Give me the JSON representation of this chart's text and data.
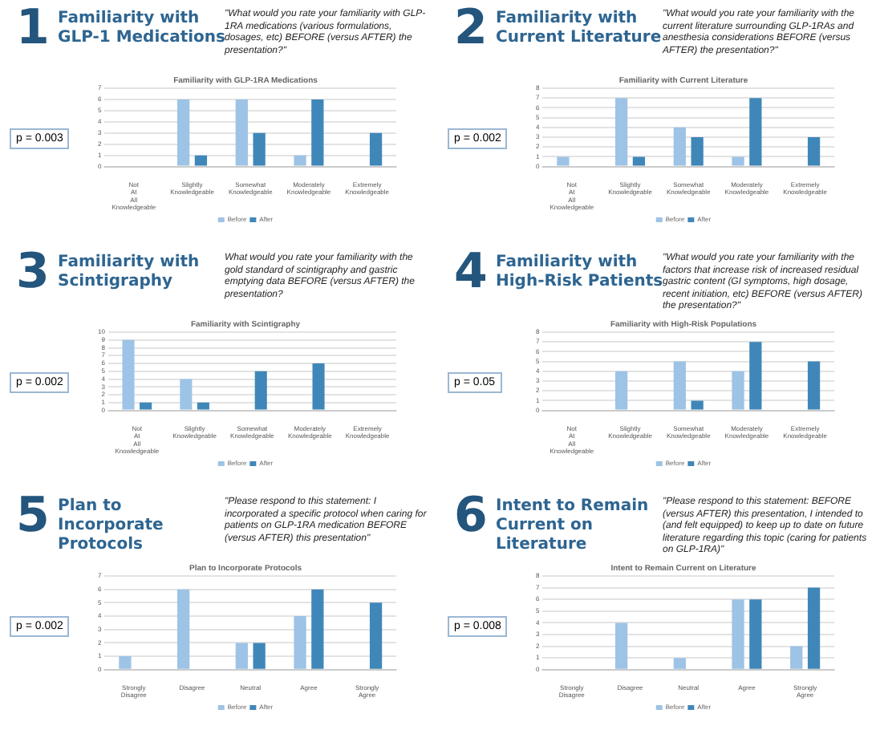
{
  "chart_data": [
    {
      "type": "bar",
      "title": "Familiarity with GLP-1RA Medications",
      "categories": [
        "Not At All Knowledgeable",
        "Slightly Knowledgeable",
        "Somewhat Knowledgeable",
        "Moderately Knowledgeable",
        "Extremely Knowledgeable"
      ],
      "series": [
        {
          "name": "Before",
          "color": "#9dc3e6",
          "values": [
            0,
            6,
            6,
            1,
            0
          ]
        },
        {
          "name": "After",
          "color": "#3f87b9",
          "values": [
            0,
            1,
            3,
            6,
            3
          ]
        }
      ],
      "ylim": [
        0,
        7
      ],
      "yticks": [
        0,
        1,
        2,
        3,
        4,
        5,
        6,
        7
      ],
      "grid": "y",
      "legend": "bottom",
      "annotations": [
        "1",
        "Familiarity with GLP-1 Medications",
        "\"What would you rate your familiarity with GLP-1RA medications (various formulations, dosages, etc) BEFORE (versus AFTER) the presentation?\"",
        "p = 0.003"
      ]
    },
    {
      "type": "bar",
      "title": "Familiarity with Current Literature",
      "categories": [
        "Not At All Knowledgeable",
        "Slightly Knowledgeable",
        "Somewhat Knowledgeable",
        "Moderately Knowledgeable",
        "Extremely Knowledgeable"
      ],
      "series": [
        {
          "name": "Before",
          "color": "#9dc3e6",
          "values": [
            1,
            7,
            4,
            1,
            0
          ]
        },
        {
          "name": "After",
          "color": "#3f87b9",
          "values": [
            0,
            1,
            3,
            7,
            3
          ]
        }
      ],
      "ylim": [
        0,
        8
      ],
      "yticks": [
        0,
        1,
        2,
        3,
        4,
        5,
        6,
        7,
        8
      ],
      "grid": "y",
      "legend": "bottom",
      "annotations": [
        "2",
        "Familiarity with Current Literature",
        "\"What would you rate your familiarity with the current literature surrounding GLP-1RAs and anesthesia considerations BEFORE (versus AFTER) the presentation?\"",
        "p = 0.002"
      ]
    },
    {
      "type": "bar",
      "title": "Familiarity with Scintigraphy",
      "categories": [
        "Not At All Knowledgeable",
        "Slightly Knowledgeable",
        "Somewhat Knowledgeable",
        "Moderately Knowledgeable",
        "Extremely Knowledgeable"
      ],
      "series": [
        {
          "name": "Before",
          "color": "#9dc3e6",
          "values": [
            9,
            4,
            0,
            0,
            0
          ]
        },
        {
          "name": "After",
          "color": "#3f87b9",
          "values": [
            1,
            1,
            5,
            6,
            0
          ]
        }
      ],
      "ylim": [
        0,
        10
      ],
      "yticks": [
        0,
        1,
        2,
        3,
        4,
        5,
        6,
        7,
        8,
        9,
        10
      ],
      "grid": "y",
      "legend": "bottom",
      "annotations": [
        "3",
        "Familiarity with Scintigraphy",
        "What would you rate your familiarity with the gold standard of scintigraphy and gastric emptying data BEFORE (versus AFTER) the presentation?",
        "p = 0.002"
      ]
    },
    {
      "type": "bar",
      "title": "Familiarity with High-Risk Populations",
      "categories": [
        "Not At All Knowledgeable",
        "Slightly Knowledgeable",
        "Somewhat Knowledgeable",
        "Moderately Knowledgeable",
        "Extremely Knowledgeable"
      ],
      "series": [
        {
          "name": "Before",
          "color": "#9dc3e6",
          "values": [
            0,
            4,
            5,
            4,
            0
          ]
        },
        {
          "name": "After",
          "color": "#3f87b9",
          "values": [
            0,
            0,
            1,
            7,
            5
          ]
        }
      ],
      "ylim": [
        0,
        8
      ],
      "yticks": [
        0,
        1,
        2,
        3,
        4,
        5,
        6,
        7,
        8
      ],
      "grid": "y",
      "legend": "bottom",
      "annotations": [
        "4",
        "Familiarity with High-Risk Patients",
        "\"What would you rate your familiarity with the factors that increase risk of increased residual gastric content (GI symptoms, high dosage, recent initiation, etc) BEFORE (versus AFTER) the presentation?\"",
        "p = 0.05"
      ]
    },
    {
      "type": "bar",
      "title": "Plan to Incorporate Protocols",
      "categories": [
        "Strongly Disagree",
        "Disagree",
        "Neutral",
        "Agree",
        "Strongly Agree"
      ],
      "series": [
        {
          "name": "Before",
          "color": "#9dc3e6",
          "values": [
            1,
            6,
            2,
            4,
            0
          ]
        },
        {
          "name": "After",
          "color": "#3f87b9",
          "values": [
            0,
            0,
            2,
            6,
            5
          ]
        }
      ],
      "ylim": [
        0,
        7
      ],
      "yticks": [
        0,
        1,
        2,
        3,
        4,
        5,
        6,
        7
      ],
      "grid": "y",
      "legend": "bottom",
      "annotations": [
        "5",
        "Plan to Incorporate Protocols",
        "\"Please respond to this statement: I incorporated a specific protocol when caring for patients on GLP-1RA medication BEFORE (versus AFTER) this presentation\"",
        "p = 0.002"
      ]
    },
    {
      "type": "bar",
      "title": "Intent to Remain Current on Literature",
      "categories": [
        "Strongly Disagree",
        "Disagree",
        "Neutral",
        "Agree",
        "Strongly Agree"
      ],
      "series": [
        {
          "name": "Before",
          "color": "#9dc3e6",
          "values": [
            0,
            4,
            1,
            6,
            2
          ]
        },
        {
          "name": "After",
          "color": "#3f87b9",
          "values": [
            0,
            0,
            0,
            6,
            7
          ]
        }
      ],
      "ylim": [
        0,
        8
      ],
      "yticks": [
        0,
        1,
        2,
        3,
        4,
        5,
        6,
        7,
        8
      ],
      "grid": "y",
      "legend": "bottom",
      "annotations": [
        "6",
        "Intent to Remain Current on Literature",
        "\"Please respond to this statement: BEFORE (versus AFTER) this presentation, I intended to (and felt equipped) to keep up to date on future literature regarding this topic (caring for patients on GLP-1RA)\"",
        "p = 0.008"
      ]
    }
  ]
}
